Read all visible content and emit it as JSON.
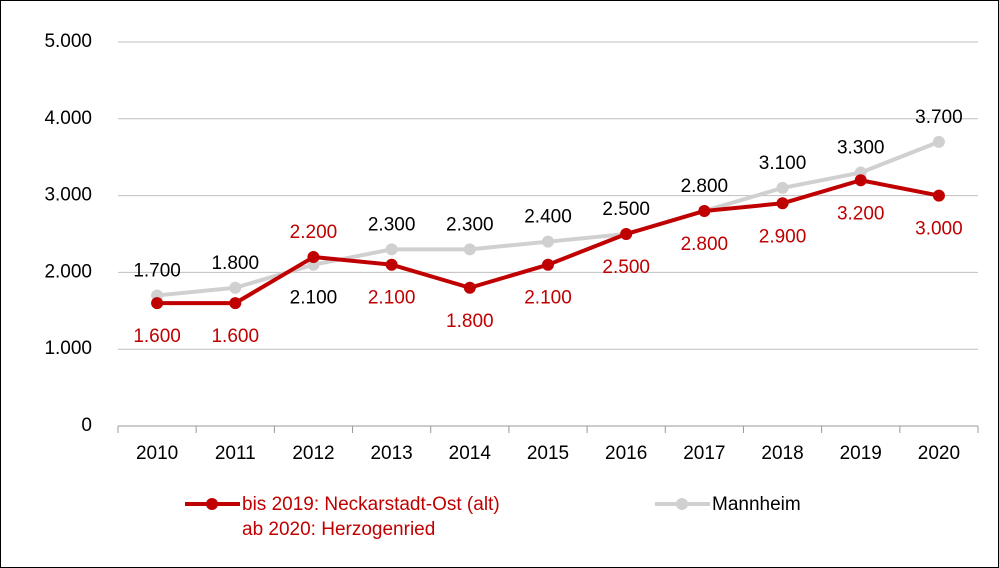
{
  "chart_data": {
    "type": "line",
    "categories": [
      "2010",
      "2011",
      "2012",
      "2013",
      "2014",
      "2015",
      "2016",
      "2017",
      "2018",
      "2019",
      "2020"
    ],
    "series": [
      {
        "name": "bis 2019: Neckarstadt-Ost (alt)\nab 2020: Herzogenried",
        "color": "#c00000",
        "values": [
          1600,
          1600,
          2200,
          2100,
          1800,
          2100,
          2500,
          2800,
          2900,
          3200,
          3000
        ],
        "value_labels": [
          "1.600",
          "1.600",
          "2.200",
          "2.100",
          "1.800",
          "2.100",
          "2.500",
          "2.800",
          "2.900",
          "3.200",
          "3.000"
        ]
      },
      {
        "name": "Mannheim",
        "color": "#d0d0d0",
        "values": [
          1700,
          1800,
          2100,
          2300,
          2300,
          2400,
          2500,
          2800,
          3100,
          3300,
          3700
        ],
        "value_labels": [
          "1.700",
          "1.800",
          "2.100",
          "2.300",
          "2.300",
          "2.400",
          "2.500",
          "2.800",
          "3.100",
          "3.300",
          "3.700"
        ]
      }
    ],
    "ylim": [
      0,
      5000
    ],
    "yticks": [
      0,
      {
        "value": 1000,
        "label": "1.000"
      },
      {
        "value": 2000,
        "label": "2.000"
      },
      {
        "value": 3000,
        "label": "3.000"
      },
      {
        "value": 4000,
        "label": "4.000"
      },
      {
        "value": 5000,
        "label": "5.000"
      }
    ],
    "grid": true
  }
}
